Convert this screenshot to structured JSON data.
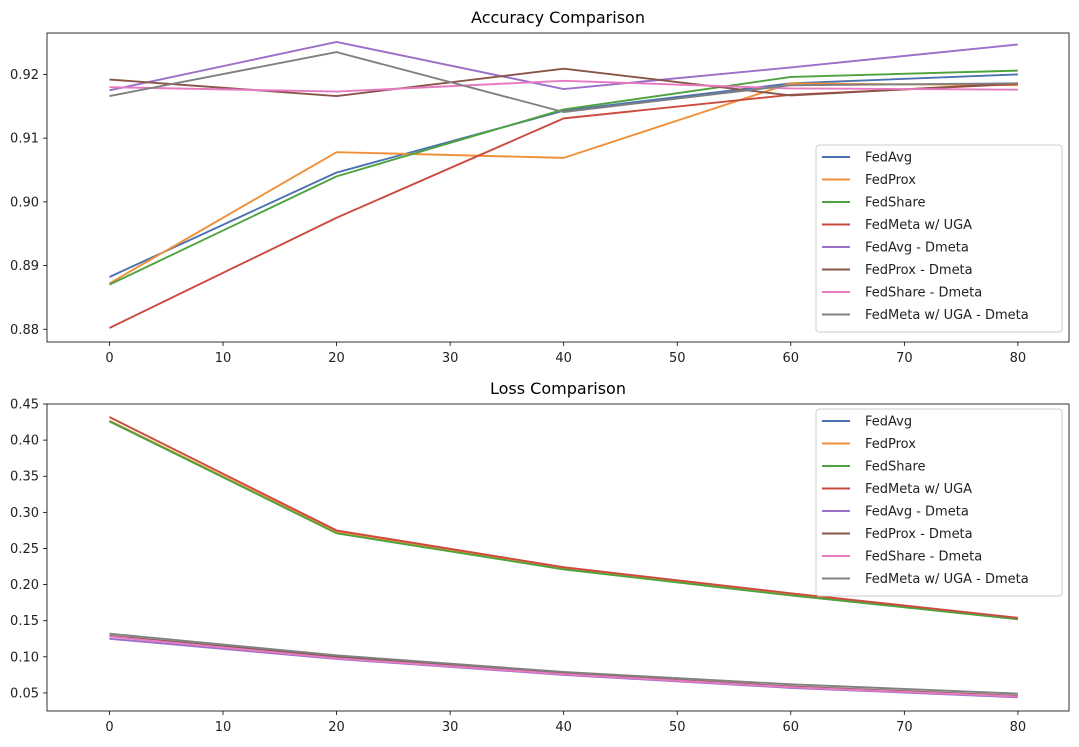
{
  "chart_data": [
    {
      "type": "line",
      "title": "Accuracy Comparison",
      "xlabel": "",
      "ylabel": "",
      "x": [
        0,
        20,
        40,
        60,
        80
      ],
      "xlim": [
        -5.5,
        84.5
      ],
      "ylim": [
        0.878,
        0.9265
      ],
      "xticks": [
        0,
        10,
        20,
        30,
        40,
        50,
        60,
        70,
        80
      ],
      "xtick_labels": [
        "0",
        "10",
        "20",
        "30",
        "40",
        "50",
        "60",
        "70",
        "80"
      ],
      "yticks": [
        0.88,
        0.89,
        0.9,
        0.91,
        0.92
      ],
      "ytick_labels": [
        "0.88",
        "0.89",
        "0.90",
        "0.91",
        "0.92"
      ],
      "grid": false,
      "legend_position": "lower-right",
      "series": [
        {
          "name": "FedAvg",
          "color": "#4c72b0",
          "values": [
            0.8882,
            0.9046,
            0.9143,
            0.9186,
            0.92
          ]
        },
        {
          "name": "FedProx",
          "color": "#f0913a",
          "values": [
            0.8872,
            0.9078,
            0.9069,
            0.9186,
            0.9183
          ]
        },
        {
          "name": "FedShare",
          "color": "#4ea33f",
          "values": [
            0.887,
            0.904,
            0.9145,
            0.9196,
            0.9206
          ]
        },
        {
          "name": "FedMeta w/ UGA",
          "color": "#cb4b3f",
          "values": [
            0.8802,
            0.8975,
            0.9131,
            0.9168,
            0.9185
          ]
        },
        {
          "name": "FedAvg - Dmeta",
          "color": "#9c6fc9",
          "values": [
            0.9175,
            0.9251,
            0.9177,
            0.9211,
            0.9247
          ]
        },
        {
          "name": "FedProx - Dmeta",
          "color": "#8a5549",
          "values": [
            0.9192,
            0.9166,
            0.9209,
            0.9167,
            0.9186
          ]
        },
        {
          "name": "FedShare - Dmeta",
          "color": "#e67ac2",
          "values": [
            0.918,
            0.9173,
            0.919,
            0.9178,
            0.9176
          ]
        },
        {
          "name": "FedMeta w/ UGA - Dmeta",
          "color": "#808080",
          "values": [
            0.9166,
            0.9235,
            0.9141,
            0.9183,
            0.9186
          ]
        }
      ]
    },
    {
      "type": "line",
      "title": "Loss Comparison",
      "xlabel": "",
      "ylabel": "",
      "x": [
        0,
        20,
        40,
        60,
        80
      ],
      "xlim": [
        -5.5,
        84.5
      ],
      "ylim": [
        0.025,
        0.45
      ],
      "xticks": [
        0,
        10,
        20,
        30,
        40,
        50,
        60,
        70,
        80
      ],
      "xtick_labels": [
        "0",
        "10",
        "20",
        "30",
        "40",
        "50",
        "60",
        "70",
        "80"
      ],
      "yticks": [
        0.05,
        0.1,
        0.15,
        0.2,
        0.25,
        0.3,
        0.35,
        0.4,
        0.45
      ],
      "ytick_labels": [
        "0.05",
        "0.10",
        "0.15",
        "0.20",
        "0.25",
        "0.30",
        "0.35",
        "0.40",
        "0.45"
      ],
      "grid": false,
      "legend_position": "upper-right",
      "series": [
        {
          "name": "FedAvg",
          "color": "#4c72b0",
          "values": [
            0.426,
            0.272,
            0.222,
            0.186,
            0.153
          ]
        },
        {
          "name": "FedProx",
          "color": "#f0913a",
          "values": [
            0.427,
            0.273,
            0.222,
            0.186,
            0.153
          ]
        },
        {
          "name": "FedShare",
          "color": "#4ea33f",
          "values": [
            0.426,
            0.271,
            0.221,
            0.185,
            0.152
          ]
        },
        {
          "name": "FedMeta w/ UGA",
          "color": "#cb4b3f",
          "values": [
            0.432,
            0.275,
            0.224,
            0.188,
            0.154
          ]
        },
        {
          "name": "FedAvg - Dmeta",
          "color": "#9c6fc9",
          "values": [
            0.125,
            0.097,
            0.075,
            0.057,
            0.044
          ]
        },
        {
          "name": "FedProx - Dmeta",
          "color": "#8a5549",
          "values": [
            0.129,
            0.1,
            0.077,
            0.059,
            0.046
          ]
        },
        {
          "name": "FedShare - Dmeta",
          "color": "#e67ac2",
          "values": [
            0.128,
            0.098,
            0.076,
            0.058,
            0.045
          ]
        },
        {
          "name": "FedMeta w/ UGA - Dmeta",
          "color": "#808080",
          "values": [
            0.132,
            0.102,
            0.079,
            0.062,
            0.049
          ]
        }
      ]
    }
  ]
}
